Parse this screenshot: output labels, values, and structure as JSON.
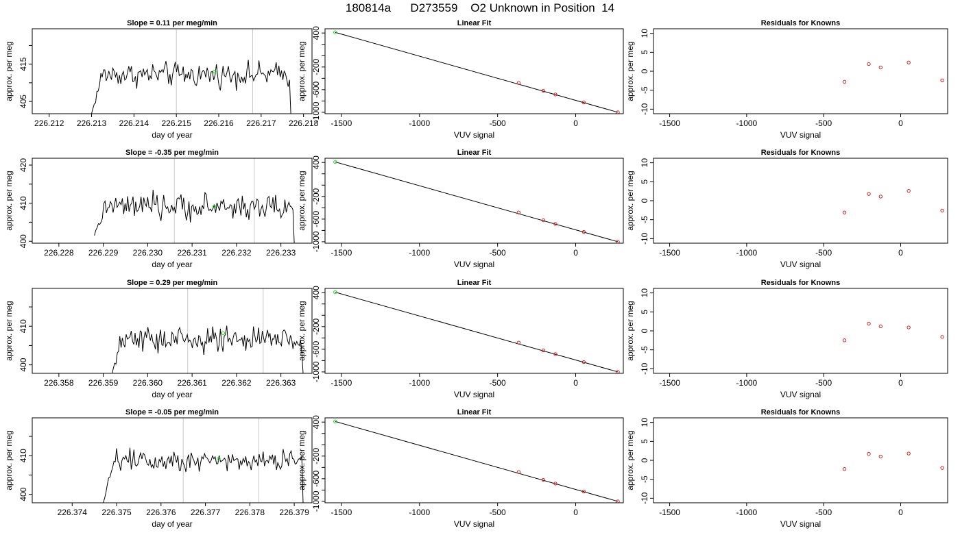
{
  "header": {
    "title": "180814a      D273559    O2 Unknown in Position  14"
  },
  "colors": {
    "trace": "#000000",
    "knowns": "#d62020",
    "unknown": "#22dd22",
    "marker_lines": "#c8c8c8",
    "fit_line": "#000000"
  },
  "chart_data": [
    {
      "type": "line",
      "title": "Slope =  0.11  per meg/min",
      "xlabel": "day of year",
      "ylabel": "approx. per meg",
      "xlim": [
        226.2116,
        226.2182
      ],
      "ylim": [
        401.7,
        424.5
      ],
      "xticks": [
        226.212,
        226.213,
        226.214,
        226.215,
        226.216,
        226.217,
        226.218
      ],
      "xtick_labels": [
        "226.212",
        "226.213",
        "226.214",
        "226.215",
        "226.216",
        "226.217",
        "226.218"
      ],
      "yticks": [
        405,
        410,
        415,
        420
      ],
      "ytick_labels": [
        "405",
        "",
        "415",
        ""
      ],
      "series": [
        {
          "x_start": 226.213,
          "x_end": 226.2177,
          "mean": 412.2,
          "amp": 2.8,
          "start": 401.7,
          "end": 401.7
        }
      ],
      "vlines": [
        226.215,
        226.2168
      ],
      "point": {
        "x": 226.2159,
        "y": 413.0
      }
    },
    {
      "type": "scatter",
      "title": "Linear Fit",
      "xlabel": "VUV signal",
      "ylabel": "approx. per meg",
      "xlim": [
        -1605,
        305
      ],
      "ylim": [
        -1025,
        475
      ],
      "xticks": [
        -1500,
        -1000,
        -500,
        0
      ],
      "xtick_labels": [
        "-1500",
        "-1000",
        "-500",
        "0"
      ],
      "yticks": [
        -1000,
        -800,
        -600,
        -400,
        -200,
        0,
        200,
        400
      ],
      "ytick_labels": [
        "-1000",
        "",
        "-600",
        "",
        "-200",
        "",
        "",
        "400"
      ],
      "knowns": [
        {
          "x": -365,
          "y": -483
        },
        {
          "x": -207,
          "y": -620
        },
        {
          "x": -130,
          "y": -685
        },
        {
          "x": 52,
          "y": -826
        },
        {
          "x": 270,
          "y": -1000
        }
      ],
      "unknown": {
        "x": -1540,
        "y": 412
      },
      "fit": {
        "x1": -1540,
        "y1": 412,
        "x2": 270,
        "y2": -1000
      }
    },
    {
      "type": "scatter",
      "title": "Residuals for Knowns",
      "xlabel": "VUV signal",
      "ylabel": "approx. per meg",
      "xlim": [
        -1605,
        305
      ],
      "ylim": [
        -11.2,
        11.2
      ],
      "xticks": [
        -1500,
        -1000,
        -500,
        0
      ],
      "xtick_labels": [
        "-1500",
        "-1000",
        "-500",
        "0"
      ],
      "yticks": [
        -10,
        -5,
        0,
        5,
        10
      ],
      "ytick_labels": [
        "-10",
        "-5",
        "0",
        "5",
        "10"
      ],
      "knowns": [
        {
          "x": -365,
          "y": -2.8
        },
        {
          "x": -207,
          "y": 1.9
        },
        {
          "x": -130,
          "y": 1.0
        },
        {
          "x": 52,
          "y": 2.3
        },
        {
          "x": 270,
          "y": -2.4
        }
      ]
    },
    {
      "type": "line",
      "title": "Slope =  -0.35  per meg/min",
      "xlabel": "day of year",
      "ylabel": "approx. per meg",
      "xlim": [
        226.2274,
        226.2337
      ],
      "ylim": [
        399.5,
        421.8
      ],
      "xticks": [
        226.228,
        226.229,
        226.23,
        226.231,
        226.232,
        226.233
      ],
      "xtick_labels": [
        "226.228",
        "226.229",
        "226.230",
        "226.231",
        "226.232",
        "226.233"
      ],
      "yticks": [
        400,
        405,
        410,
        415,
        420
      ],
      "ytick_labels": [
        "400",
        "",
        "410",
        "",
        "420"
      ],
      "series": [
        {
          "x_start": 226.2288,
          "x_end": 226.2333,
          "mean": 409.0,
          "amp": 2.9,
          "start": 401.5,
          "end": 399.5
        }
      ],
      "vlines": [
        226.2306,
        226.2324
      ],
      "point": {
        "x": 226.2315,
        "y": 409.1
      }
    },
    {
      "type": "scatter",
      "title": "Linear Fit",
      "xlabel": "VUV signal",
      "ylabel": "approx. per meg",
      "xlim": [
        -1605,
        305
      ],
      "ylim": [
        -1025,
        475
      ],
      "xticks": [
        -1500,
        -1000,
        -500,
        0
      ],
      "xtick_labels": [
        "-1500",
        "-1000",
        "-500",
        "0"
      ],
      "yticks": [
        -1000,
        -800,
        -600,
        -400,
        -200,
        0,
        200,
        400
      ],
      "ytick_labels": [
        "-1000",
        "",
        "-600",
        "",
        "-200",
        "",
        "",
        "400"
      ],
      "knowns": [
        {
          "x": -365,
          "y": -483
        },
        {
          "x": -207,
          "y": -620
        },
        {
          "x": -130,
          "y": -685
        },
        {
          "x": 52,
          "y": -826
        },
        {
          "x": 270,
          "y": -1000
        }
      ],
      "unknown": {
        "x": -1540,
        "y": 410
      },
      "fit": {
        "x1": -1540,
        "y1": 410,
        "x2": 270,
        "y2": -1000
      }
    },
    {
      "type": "scatter",
      "title": "Residuals for Knowns",
      "xlabel": "VUV signal",
      "ylabel": "approx. per meg",
      "xlim": [
        -1605,
        305
      ],
      "ylim": [
        -11.2,
        11.2
      ],
      "xticks": [
        -1500,
        -1000,
        -500,
        0
      ],
      "xtick_labels": [
        "-1500",
        "-1000",
        "-500",
        "0"
      ],
      "yticks": [
        -10,
        -5,
        0,
        5,
        10
      ],
      "ytick_labels": [
        "-10",
        "-5",
        "0",
        "5",
        "10"
      ],
      "knowns": [
        {
          "x": -365,
          "y": -3.1
        },
        {
          "x": -207,
          "y": 1.8
        },
        {
          "x": -130,
          "y": 1.1
        },
        {
          "x": 52,
          "y": 2.6
        },
        {
          "x": 270,
          "y": -2.6
        }
      ]
    },
    {
      "type": "line",
      "title": "Slope =  0.29  per meg/min",
      "xlabel": "day of year",
      "ylabel": "approx. per meg",
      "xlim": [
        226.3574,
        226.3637
      ],
      "ylim": [
        397.8,
        419.8
      ],
      "xticks": [
        226.358,
        226.359,
        226.36,
        226.361,
        226.362,
        226.363
      ],
      "xtick_labels": [
        "226.358",
        "226.359",
        "226.360",
        "226.361",
        "226.362",
        "226.363"
      ],
      "yticks": [
        400,
        405,
        410,
        415
      ],
      "ytick_labels": [
        "400",
        "",
        "410",
        ""
      ],
      "series": [
        {
          "x_start": 226.3592,
          "x_end": 226.3635,
          "mean": 406.5,
          "amp": 3.0,
          "start": 397.8,
          "end": 397.8
        }
      ],
      "vlines": [
        226.3609,
        226.3626
      ],
      "point": {
        "x": 226.3617,
        "y": 408.2
      }
    },
    {
      "type": "scatter",
      "title": "Linear Fit",
      "xlabel": "VUV signal",
      "ylabel": "approx. per meg",
      "xlim": [
        -1605,
        305
      ],
      "ylim": [
        -1025,
        475
      ],
      "xticks": [
        -1500,
        -1000,
        -500,
        0
      ],
      "xtick_labels": [
        "-1500",
        "-1000",
        "-500",
        "0"
      ],
      "yticks": [
        -1000,
        -800,
        -600,
        -400,
        -200,
        0,
        200,
        400
      ],
      "ytick_labels": [
        "-1000",
        "",
        "-600",
        "",
        "-200",
        "",
        "",
        "400"
      ],
      "knowns": [
        {
          "x": -365,
          "y": -483
        },
        {
          "x": -207,
          "y": -620
        },
        {
          "x": -130,
          "y": -685
        },
        {
          "x": 52,
          "y": -826
        },
        {
          "x": 270,
          "y": -1000
        }
      ],
      "unknown": {
        "x": -1540,
        "y": 408
      },
      "fit": {
        "x1": -1540,
        "y1": 408,
        "x2": 270,
        "y2": -1000
      }
    },
    {
      "type": "scatter",
      "title": "Residuals for Knowns",
      "xlabel": "VUV signal",
      "ylabel": "approx. per meg",
      "xlim": [
        -1605,
        305
      ],
      "ylim": [
        -11.2,
        11.2
      ],
      "xticks": [
        -1500,
        -1000,
        -500,
        0
      ],
      "xtick_labels": [
        "-1500",
        "-1000",
        "-500",
        "0"
      ],
      "yticks": [
        -10,
        -5,
        0,
        5,
        10
      ],
      "ytick_labels": [
        "-10",
        "-5",
        "0",
        "5",
        "10"
      ],
      "knowns": [
        {
          "x": -365,
          "y": -2.5
        },
        {
          "x": -207,
          "y": 1.9
        },
        {
          "x": -130,
          "y": 1.2
        },
        {
          "x": 52,
          "y": 0.9
        },
        {
          "x": 270,
          "y": -1.6
        }
      ]
    },
    {
      "type": "line",
      "title": "Slope =  -0.05  per meg/min",
      "xlabel": "day of year",
      "ylabel": "approx. per meg",
      "xlim": [
        226.3731,
        226.3794
      ],
      "ylim": [
        397.8,
        419.8
      ],
      "xticks": [
        226.374,
        226.375,
        226.376,
        226.377,
        226.378,
        226.379
      ],
      "xtick_labels": [
        "226.374",
        "226.375",
        "226.376",
        "226.377",
        "226.378",
        "226.379"
      ],
      "yticks": [
        400,
        405,
        410,
        415
      ],
      "ytick_labels": [
        "400",
        "",
        "410",
        ""
      ],
      "series": [
        {
          "x_start": 226.3747,
          "x_end": 226.3792,
          "mean": 409.0,
          "amp": 2.6,
          "start": 397.8,
          "end": 397.8
        }
      ],
      "vlines": [
        226.3765,
        226.3782
      ],
      "point": {
        "x": 226.3773,
        "y": 409.2
      }
    },
    {
      "type": "scatter",
      "title": "Linear Fit",
      "xlabel": "VUV signal",
      "ylabel": "approx. per meg",
      "xlim": [
        -1605,
        305
      ],
      "ylim": [
        -1025,
        475
      ],
      "xticks": [
        -1500,
        -1000,
        -500,
        0
      ],
      "xtick_labels": [
        "-1500",
        "-1000",
        "-500",
        "0"
      ],
      "yticks": [
        -1000,
        -800,
        -600,
        -400,
        -200,
        0,
        200,
        400
      ],
      "ytick_labels": [
        "-1000",
        "",
        "-600",
        "",
        "-200",
        "",
        "",
        "400"
      ],
      "knowns": [
        {
          "x": -365,
          "y": -483
        },
        {
          "x": -207,
          "y": -620
        },
        {
          "x": -130,
          "y": -685
        },
        {
          "x": 52,
          "y": -826
        },
        {
          "x": 270,
          "y": -1000
        }
      ],
      "unknown": {
        "x": -1540,
        "y": 411
      },
      "fit": {
        "x1": -1540,
        "y1": 411,
        "x2": 270,
        "y2": -1000
      }
    },
    {
      "type": "scatter",
      "title": "Residuals for Knowns",
      "xlabel": "VUV signal",
      "ylabel": "approx. per meg",
      "xlim": [
        -1605,
        305
      ],
      "ylim": [
        -11.2,
        11.2
      ],
      "xticks": [
        -1500,
        -1000,
        -500,
        0
      ],
      "xtick_labels": [
        "-1500",
        "-1000",
        "-500",
        "0"
      ],
      "yticks": [
        -10,
        -5,
        0,
        5,
        10
      ],
      "ytick_labels": [
        "-10",
        "-5",
        "0",
        "5",
        "10"
      ],
      "knowns": [
        {
          "x": -365,
          "y": -2.3
        },
        {
          "x": -207,
          "y": 1.7
        },
        {
          "x": -130,
          "y": 1.0
        },
        {
          "x": 52,
          "y": 1.8
        },
        {
          "x": 270,
          "y": -2.0
        }
      ]
    }
  ]
}
